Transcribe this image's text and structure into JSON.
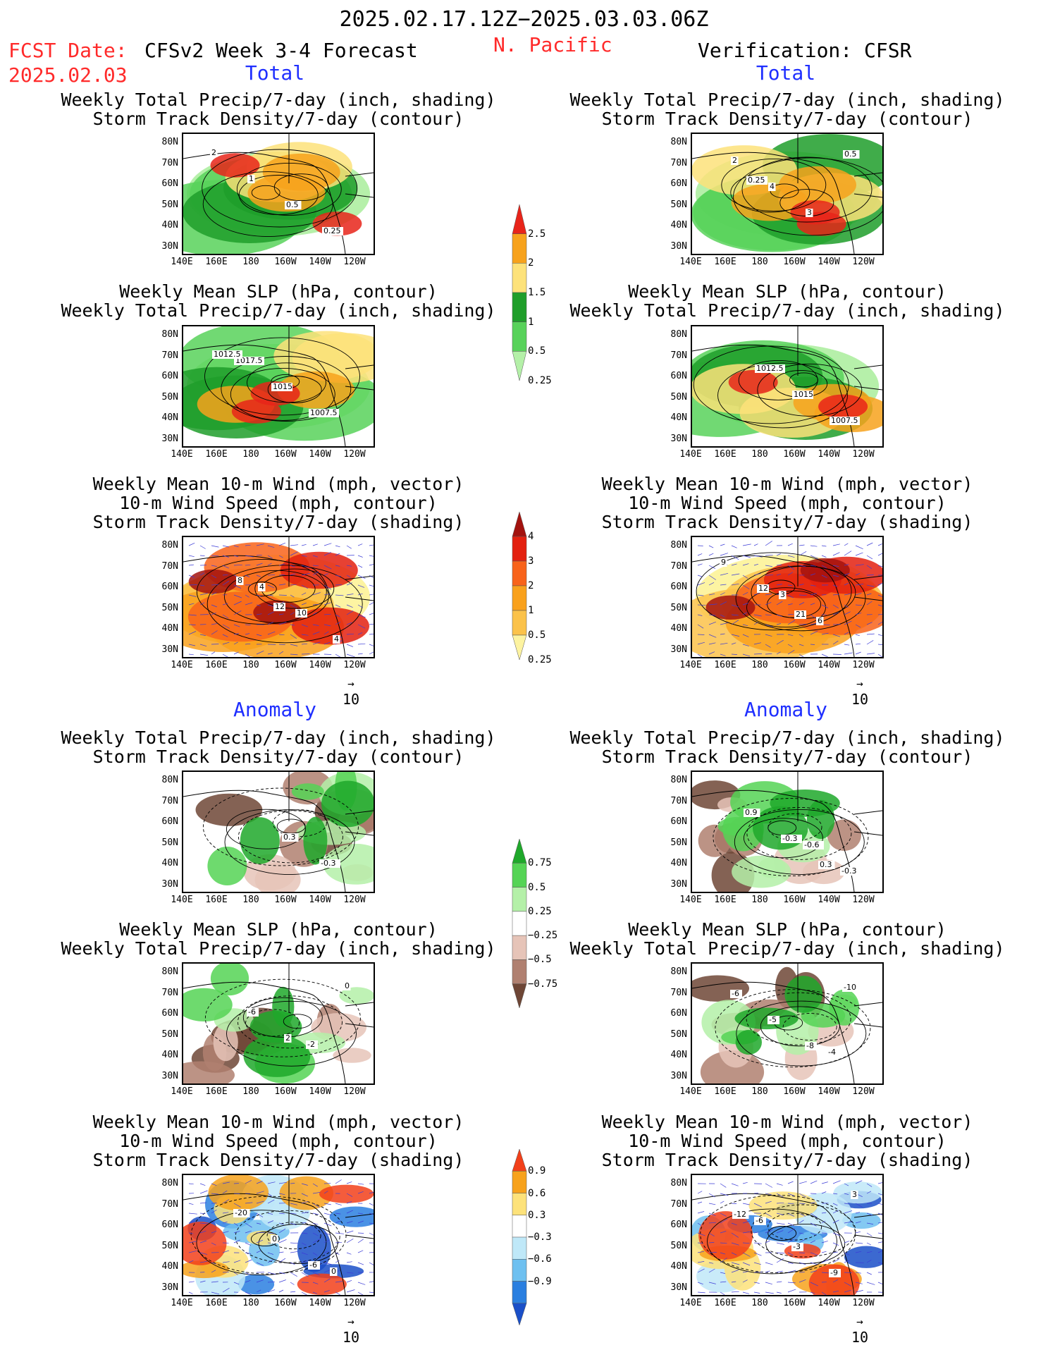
{
  "header": {
    "date_range": "2025.02.17.12Z−2025.03.03.06Z",
    "fcst_label": "FCST Date:",
    "fcst_date": "2025.02.03",
    "model_title": "CFSv2 Week 3-4 Forecast",
    "region": "N. Pacific",
    "verification": "Verification: CFSR",
    "total_left": "Total",
    "total_right": "Total",
    "anomaly_left": "Anomaly",
    "anomaly_right": "Anomaly"
  },
  "panel_titles": {
    "precip_storm": "Weekly Total Precip/7-day (inch, shading)\nStorm Track Density/7-day (contour)",
    "slp_precip": "Weekly Mean SLP (hPa, contour)\nWeekly Total Precip/7-day (inch, shading)",
    "wind_storm": "Weekly Mean 10-m Wind (mph, vector)\n10-m Wind Speed (mph, contour)\nStorm Track Density/7-day (shading)"
  },
  "axes": {
    "lat_labels": [
      "80N",
      "70N",
      "60N",
      "50N",
      "40N",
      "30N"
    ],
    "lon_labels": [
      "140E",
      "160E",
      "180",
      "160W",
      "140W",
      "120W"
    ],
    "vector_ref": "10"
  },
  "colorbars": {
    "precip_total": {
      "labels": [
        "2.5",
        "2",
        "1.5",
        "1",
        "0.5",
        "0.25"
      ],
      "colors": [
        "#e8241a",
        "#f7a21c",
        "#fde27a",
        "#1f9e2a",
        "#58d25a",
        "#b4f0a8"
      ]
    },
    "storm_total": {
      "labels": [
        "4",
        "3",
        "2",
        "1",
        "0.5",
        "0.25"
      ],
      "colors": [
        "#a3120e",
        "#e3200f",
        "#f8631a",
        "#f9a11c",
        "#fbc24a",
        "#fdf3a0"
      ]
    },
    "precip_anom": {
      "labels": [
        "0.75",
        "0.5",
        "0.25",
        "−0.25",
        "−0.5",
        "−0.75"
      ],
      "colors": [
        "#1fa82a",
        "#55d455",
        "#b4f0a8",
        "#ffffff",
        "#e6c4b8",
        "#b08070",
        "#6e4636"
      ]
    },
    "storm_anom": {
      "labels": [
        "0.9",
        "0.6",
        "0.3",
        "−0.3",
        "−0.6",
        "−0.9"
      ],
      "colors": [
        "#f2401a",
        "#f7a21c",
        "#fde27a",
        "#ffffff",
        "#bfe8f8",
        "#6ec0f0",
        "#2a7fe0",
        "#1a4fc8"
      ]
    }
  },
  "chart_data": [
    {
      "type": "heatmap",
      "section": "Total",
      "source": "CFSv2 Week 3-4 Forecast",
      "field": "precip_storm",
      "contour_labels": [
        "2",
        "1",
        "0.5",
        "0.25"
      ]
    },
    {
      "type": "heatmap",
      "section": "Total",
      "source": "Verification: CFSR",
      "field": "precip_storm",
      "contour_labels": [
        "2",
        "4",
        "3",
        "0.5",
        "0.25"
      ]
    },
    {
      "type": "heatmap",
      "section": "Total",
      "source": "CFSv2 Week 3-4 Forecast",
      "field": "slp_precip",
      "contour_labels": [
        "1017.5",
        "1015",
        "1007.5",
        "1012.5"
      ]
    },
    {
      "type": "heatmap",
      "section": "Total",
      "source": "Verification: CFSR",
      "field": "slp_precip",
      "contour_labels": [
        "1012.5",
        "1015",
        "1007.5"
      ]
    },
    {
      "type": "heatmap",
      "section": "Total",
      "source": "CFSv2 Week 3-4 Forecast",
      "field": "wind_storm",
      "contour_labels": [
        "4",
        "10",
        "4",
        "8",
        "12"
      ]
    },
    {
      "type": "heatmap",
      "section": "Total",
      "source": "Verification: CFSR",
      "field": "wind_storm",
      "contour_labels": [
        "3",
        "6",
        "9",
        "12",
        "21"
      ]
    },
    {
      "type": "heatmap",
      "section": "Anomaly",
      "source": "CFSv2 Week 3-4 Forecast",
      "field": "precip_storm",
      "contour_labels": [
        "0.3",
        "-0.3"
      ]
    },
    {
      "type": "heatmap",
      "section": "Anomaly",
      "source": "Verification: CFSR",
      "field": "precip_storm",
      "contour_labels": [
        "-0.6",
        "-0.3",
        "0.9",
        "-0.3",
        "0.3"
      ]
    },
    {
      "type": "heatmap",
      "section": "Anomaly",
      "source": "CFSv2 Week 3-4 Forecast",
      "field": "slp_precip",
      "contour_labels": [
        "-2",
        "0",
        "-6",
        "2"
      ]
    },
    {
      "type": "heatmap",
      "section": "Anomaly",
      "source": "Verification: CFSR",
      "field": "slp_precip",
      "contour_labels": [
        "-4",
        "-6",
        "-5",
        "-8",
        "-10"
      ]
    },
    {
      "type": "heatmap",
      "section": "Anomaly",
      "source": "CFSv2 Week 3-4 Forecast",
      "field": "wind_storm",
      "contour_labels": [
        "0",
        "-20",
        "0",
        "-6"
      ]
    },
    {
      "type": "heatmap",
      "section": "Anomaly",
      "source": "Verification: CFSR",
      "field": "wind_storm",
      "contour_labels": [
        "3",
        "-6",
        "-3",
        "-9",
        "-12"
      ]
    }
  ]
}
